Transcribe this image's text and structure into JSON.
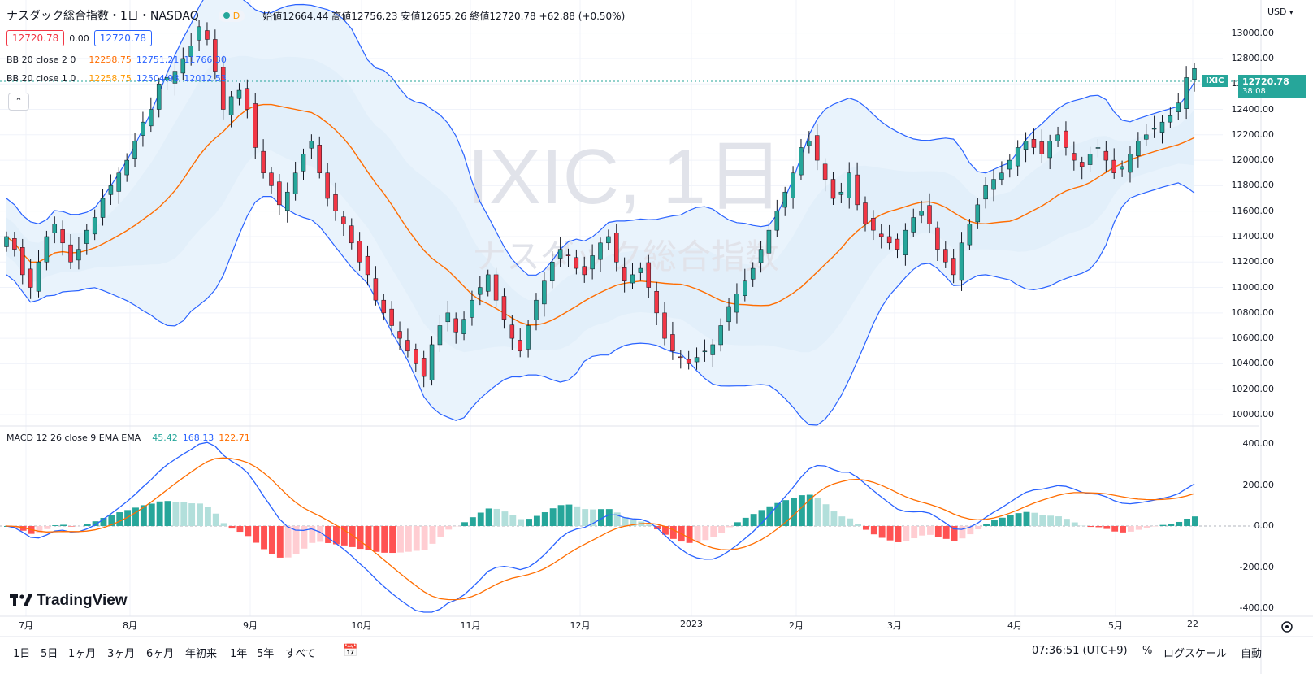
{
  "header": {
    "symbol_title": "ナスダック総合指数・1日・NASDAQ",
    "interval_badge": "D",
    "ohlc": "始値12664.44 高値12756.23 安値12655.26 終値12720.78 +62.88 (+0.50%)"
  },
  "quote_boxes": {
    "sell": "12720.78",
    "spread": "0.00",
    "buy": "12720.78"
  },
  "indicators": {
    "bb1": {
      "label": "BB 20 close 2 0",
      "basis": "12258.75",
      "upper": "12751.21",
      "lower": "11766.30"
    },
    "bb2": {
      "label": "BB 20 close 1 0",
      "basis": "12258.75",
      "upper": "12504.98",
      "lower": "12012.53"
    },
    "macd": {
      "label": "MACD 12 26 close 9 EMA EMA",
      "hist": "45.42",
      "macd": "168.13",
      "signal": "122.71"
    }
  },
  "watermark": {
    "title": "IXIC, 1日",
    "subtitle": "ナスダック総合指数"
  },
  "price_tag": {
    "symbol": "IXIC",
    "price": "12720.78",
    "countdown": "38:08"
  },
  "currency": "USD",
  "price_axis": [
    "13000.00",
    "12800.00",
    "12600.00",
    "12400.00",
    "12200.00",
    "12000.00",
    "11800.00",
    "11600.00",
    "11400.00",
    "11200.00",
    "11000.00",
    "10800.00",
    "10600.00",
    "10400.00",
    "10200.00",
    "10000.00"
  ],
  "macd_axis": [
    "400.00",
    "200.00",
    "0.00",
    "-200.00",
    "-400.00"
  ],
  "time_axis": [
    "7月",
    "8月",
    "9月",
    "10月",
    "11月",
    "12月",
    "2023",
    "2月",
    "3月",
    "4月",
    "5月",
    "22"
  ],
  "brand": "TradingView",
  "bottom_bar": {
    "ranges": [
      "1日",
      "5日",
      "1ヶ月",
      "3ヶ月",
      "6ヶ月",
      "年初来",
      "1年",
      "5年",
      "すべて"
    ],
    "clock": "07:36:51 (UTC+9)",
    "percent": "%",
    "log_scale": "ログスケール",
    "auto": "自動"
  },
  "colors": {
    "up": "#26a69a",
    "down": "#f23645",
    "bb_outer": "#2962ff",
    "basis": "#ff6d00",
    "fill": "#e3f0fb"
  },
  "chart_data": {
    "type": "candlestick",
    "series": [
      {
        "name": "IXIC",
        "close": [
          11400,
          11300,
          11100,
          11000,
          11200,
          11400,
          11500,
          11350,
          11200,
          11300,
          11450,
          11550,
          11700,
          11800,
          11900,
          12000,
          12150,
          12300,
          12400,
          12600,
          12650,
          12700,
          12800,
          12900,
          13050,
          12950,
          12700,
          12400,
          12500,
          12550,
          12400,
          12100,
          11900,
          11800,
          11650,
          11750,
          11900,
          12050,
          12150,
          11900,
          11700,
          11600,
          11500,
          11350,
          11200,
          11100,
          10900,
          10800,
          10700,
          10600,
          10500,
          10400,
          10300,
          10550,
          10700,
          10800,
          10650,
          10750,
          10900,
          11000,
          11100,
          10900,
          10750,
          10600,
          10500,
          10700,
          10900,
          11050,
          11200,
          11300,
          11250,
          11150,
          11100,
          11250,
          11350,
          11400,
          11200,
          11050,
          11100,
          11150,
          11000,
          10800,
          10600,
          10500,
          10450,
          10400,
          10450,
          10500,
          10550,
          10700,
          10850,
          10950,
          11050,
          11150,
          11300,
          11450,
          11600,
          11750,
          11900,
          12100,
          12150,
          12000,
          11850,
          11700,
          11750,
          11900,
          11650,
          11500,
          11450,
          11400,
          11350,
          11300,
          11450,
          11550,
          11600,
          11500,
          11300,
          11200,
          11100,
          11350,
          11500,
          11650,
          11800,
          11850,
          11900,
          12000,
          12100,
          12150,
          12100,
          12050,
          12150,
          12200,
          12100,
          12000,
          11950,
          12050,
          12100,
          12000,
          11900,
          11950,
          12050,
          12150,
          12200,
          12250,
          12300,
          12350,
          12450,
          12650,
          12720.78
        ]
      }
    ],
    "macd": {
      "values_label": "MACD 12 26 close 9 EMA EMA",
      "last": {
        "hist": 45.42,
        "macd": 168.13,
        "signal": 122.71
      }
    },
    "y_range": [
      10000,
      13100
    ],
    "macd_range": [
      -400,
      400
    ],
    "x_labels": [
      "7月",
      "8月",
      "9月",
      "10月",
      "11月",
      "12月",
      "2023",
      "2月",
      "3月",
      "4月",
      "5月",
      "22"
    ]
  }
}
